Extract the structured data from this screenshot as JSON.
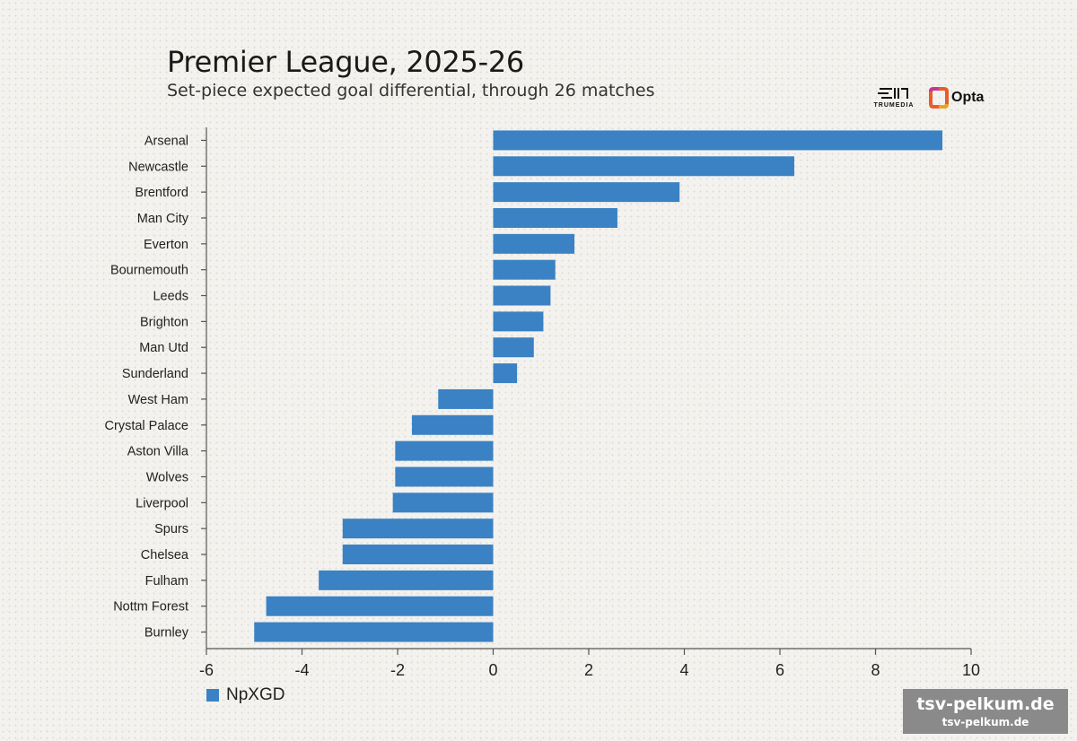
{
  "header": {
    "title": "Premier League, 2025-26",
    "subtitle": "Set-piece expected goal differential, through 26 matches"
  },
  "logos": {
    "trumedia": "TRUMEDIA",
    "opta": "Opta"
  },
  "watermark": {
    "line1": "tsv-pelkum.de",
    "line2": "tsv-pelkum.de"
  },
  "colors": {
    "bar": "#3b82c4",
    "axis": "#555555",
    "text": "#222222"
  },
  "chart_data": {
    "type": "bar",
    "orientation": "horizontal",
    "title": "Premier League, 2025-26",
    "subtitle": "Set-piece expected goal differential, through 26 matches",
    "categories": [
      "Arsenal",
      "Newcastle",
      "Brentford",
      "Man City",
      "Everton",
      "Bournemouth",
      "Leeds",
      "Brighton",
      "Man Utd",
      "Sunderland",
      "West Ham",
      "Crystal Palace",
      "Aston Villa",
      "Wolves",
      "Liverpool",
      "Spurs",
      "Chelsea",
      "Fulham",
      "Nottm Forest",
      "Burnley"
    ],
    "series": [
      {
        "name": "NpXGD",
        "values": [
          9.4,
          6.3,
          3.9,
          2.6,
          1.7,
          1.3,
          1.2,
          1.05,
          0.85,
          0.5,
          -1.15,
          -1.7,
          -2.05,
          -2.05,
          -2.1,
          -3.15,
          -3.15,
          -3.65,
          -4.75,
          -5.0
        ]
      }
    ],
    "xlim": [
      -6,
      10
    ],
    "xticks": [
      -6,
      -4,
      -2,
      0,
      2,
      4,
      6,
      8,
      10
    ],
    "xlabel": "",
    "ylabel": "",
    "grid": false,
    "legend": "bottom-left"
  }
}
